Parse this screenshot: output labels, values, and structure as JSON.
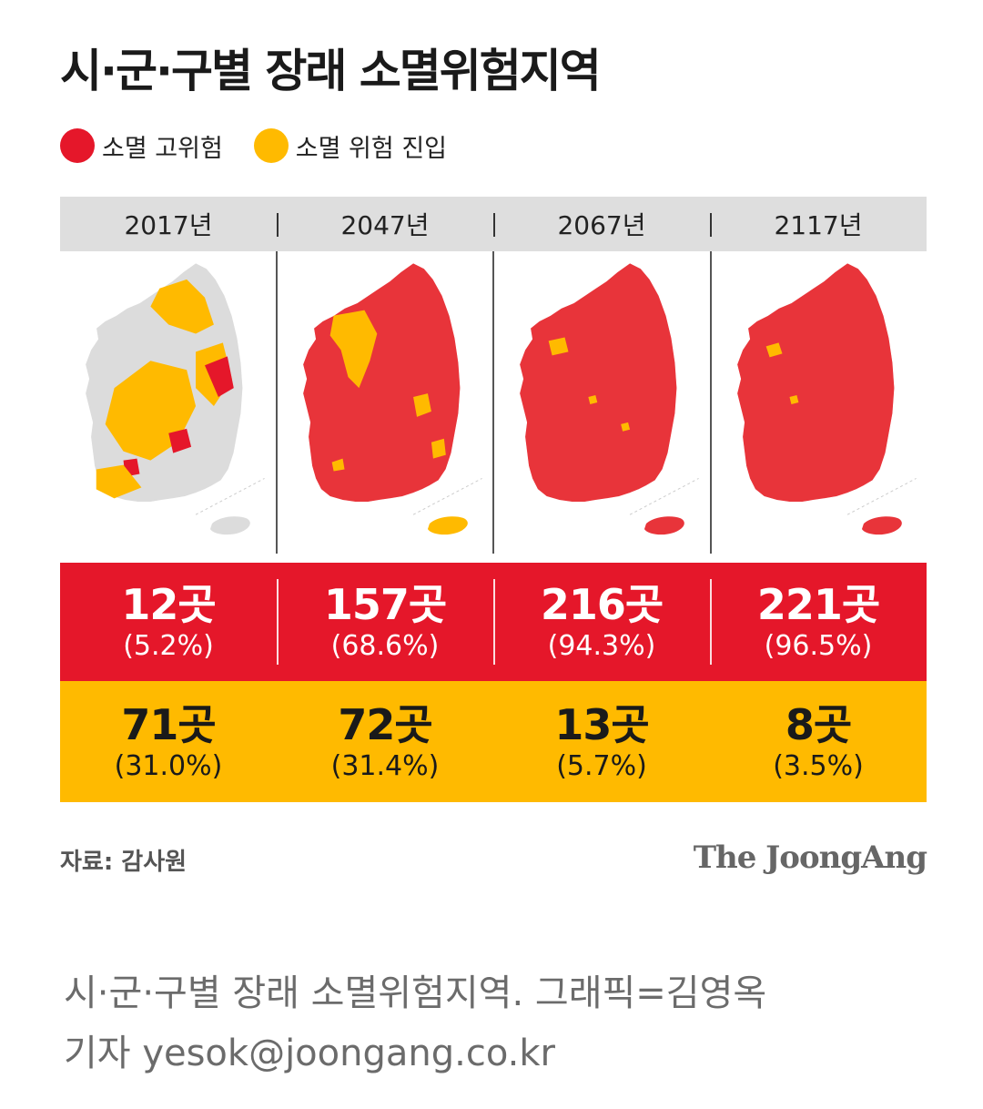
{
  "title": "시·군·구별 장래 소멸위험지역",
  "legend": {
    "high_risk": "소멸 고위험",
    "entering_risk": "소멸 위험 진입"
  },
  "colors": {
    "high_risk": "#e5172a",
    "entering_risk": "#ffba00",
    "map_red": "#e8343a",
    "map_gray": "#dcdcdc",
    "year_bar": "#dedede"
  },
  "chart_data": {
    "type": "table",
    "title": "시·군·구별 장래 소멸위험지역",
    "categories": [
      "2017년",
      "2047년",
      "2067년",
      "2117년"
    ],
    "series": [
      {
        "name": "소멸 고위험",
        "counts": [
          "12곳",
          "157곳",
          "216곳",
          "221곳"
        ],
        "percents": [
          "(5.2%)",
          "(68.6%)",
          "(94.3%)",
          "(96.5%)"
        ],
        "values": [
          12,
          157,
          216,
          221
        ],
        "percent_values": [
          5.2,
          68.6,
          94.3,
          96.5
        ]
      },
      {
        "name": "소멸 위험 진입",
        "counts": [
          "71곳",
          "72곳",
          "13곳",
          "8곳"
        ],
        "percents": [
          "(31.0%)",
          "(31.4%)",
          "(5.7%)",
          "(3.5%)"
        ],
        "values": [
          71,
          72,
          13,
          8
        ],
        "percent_values": [
          31.0,
          31.4,
          5.7,
          3.5
        ]
      }
    ]
  },
  "source": "자료: 감사원",
  "brand": "The JoongAng",
  "caption": {
    "line1": "시·군·구별 장래 소멸위험지역. 그래픽=김영옥",
    "line2": "기자 yesok@joongang.co.kr"
  }
}
